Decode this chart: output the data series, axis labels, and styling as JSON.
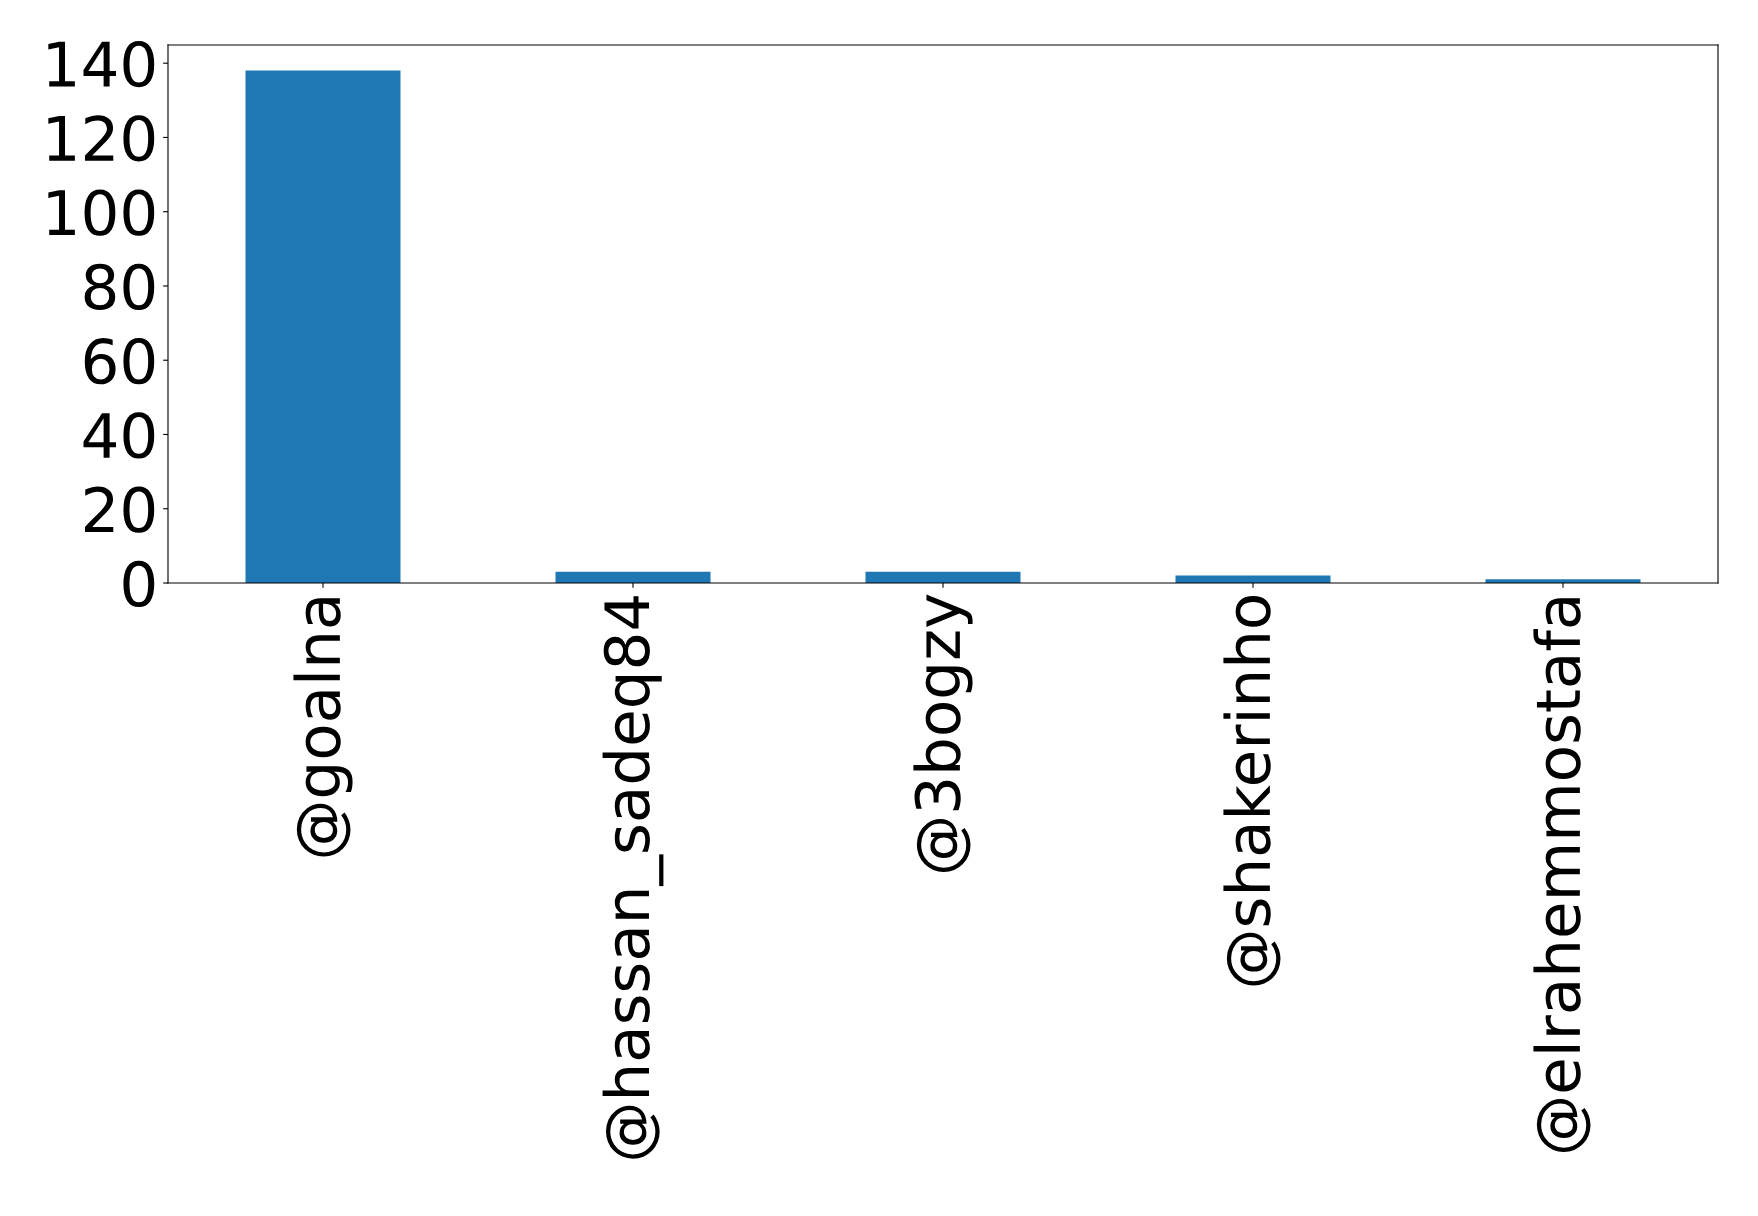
{
  "chart_data": {
    "type": "bar",
    "categories": [
      "@goalna",
      "@hassan_sadeq84",
      "@3bogzy",
      "@shakerinho",
      "@elrahemmostafa"
    ],
    "values": [
      138,
      3,
      3,
      2,
      1
    ],
    "color": "#1f77b4",
    "ylim": [
      0,
      144.9
    ],
    "yticks": [
      0,
      20,
      40,
      60,
      80,
      100,
      120,
      140
    ],
    "grid": false,
    "legend": false
  }
}
